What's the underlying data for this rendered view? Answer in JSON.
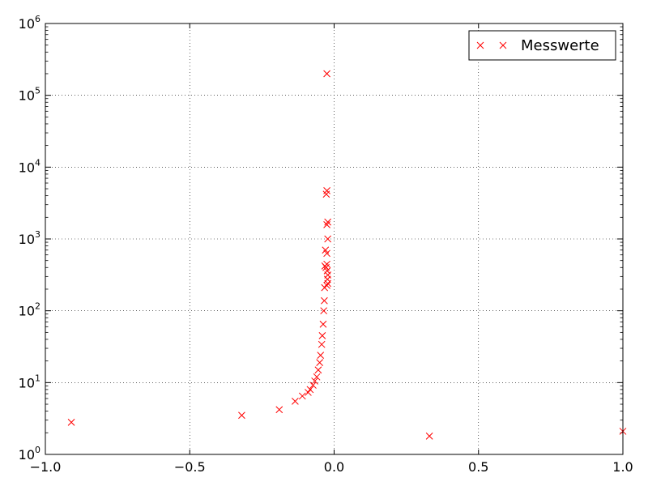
{
  "chart_data": {
    "type": "scatter",
    "title": "",
    "xlabel": "",
    "ylabel": "",
    "xlim": [
      -1.0,
      1.0
    ],
    "ylim": [
      1,
      1000000
    ],
    "y_scale": "log",
    "grid": true,
    "legend_position": "top-right",
    "x_tick_labels": [
      "−1.0",
      "−0.5",
      "0.0",
      "0.5",
      "1.0"
    ],
    "x_tick_values": [
      -1.0,
      -0.5,
      0.0,
      0.5,
      1.0
    ],
    "y_tick_values": [
      1,
      10,
      100,
      1000,
      10000,
      100000,
      1000000
    ],
    "y_tick_base": "10",
    "y_tick_exponents": [
      "0",
      "1",
      "2",
      "3",
      "4",
      "5",
      "6"
    ],
    "series": [
      {
        "name": "Messwerte",
        "color": "#ff0000",
        "marker": "x",
        "points": [
          {
            "x": -0.91,
            "y": 2.8
          },
          {
            "x": -0.32,
            "y": 3.5
          },
          {
            "x": -0.19,
            "y": 4.2
          },
          {
            "x": -0.135,
            "y": 5.5
          },
          {
            "x": -0.11,
            "y": 6.5
          },
          {
            "x": -0.09,
            "y": 7.3
          },
          {
            "x": -0.083,
            "y": 8.0
          },
          {
            "x": -0.073,
            "y": 9.2
          },
          {
            "x": -0.067,
            "y": 10.5
          },
          {
            "x": -0.06,
            "y": 12
          },
          {
            "x": -0.055,
            "y": 15
          },
          {
            "x": -0.05,
            "y": 19
          },
          {
            "x": -0.047,
            "y": 24
          },
          {
            "x": -0.043,
            "y": 34
          },
          {
            "x": -0.041,
            "y": 45
          },
          {
            "x": -0.038,
            "y": 65
          },
          {
            "x": -0.036,
            "y": 100
          },
          {
            "x": -0.034,
            "y": 138
          },
          {
            "x": -0.033,
            "y": 210
          },
          {
            "x": -0.025,
            "y": 225
          },
          {
            "x": -0.022,
            "y": 240
          },
          {
            "x": -0.023,
            "y": 275
          },
          {
            "x": -0.022,
            "y": 315
          },
          {
            "x": -0.024,
            "y": 360
          },
          {
            "x": -0.028,
            "y": 400
          },
          {
            "x": -0.032,
            "y": 420
          },
          {
            "x": -0.025,
            "y": 445
          },
          {
            "x": -0.03,
            "y": 700
          },
          {
            "x": -0.025,
            "y": 630
          },
          {
            "x": -0.022,
            "y": 1000
          },
          {
            "x": -0.025,
            "y": 1580
          },
          {
            "x": -0.022,
            "y": 1720
          },
          {
            "x": -0.027,
            "y": 4200
          },
          {
            "x": -0.025,
            "y": 4700
          },
          {
            "x": -0.025,
            "y": 200000
          },
          {
            "x": 0.33,
            "y": 1.8
          },
          {
            "x": 1.0,
            "y": 2.1
          }
        ]
      }
    ]
  }
}
